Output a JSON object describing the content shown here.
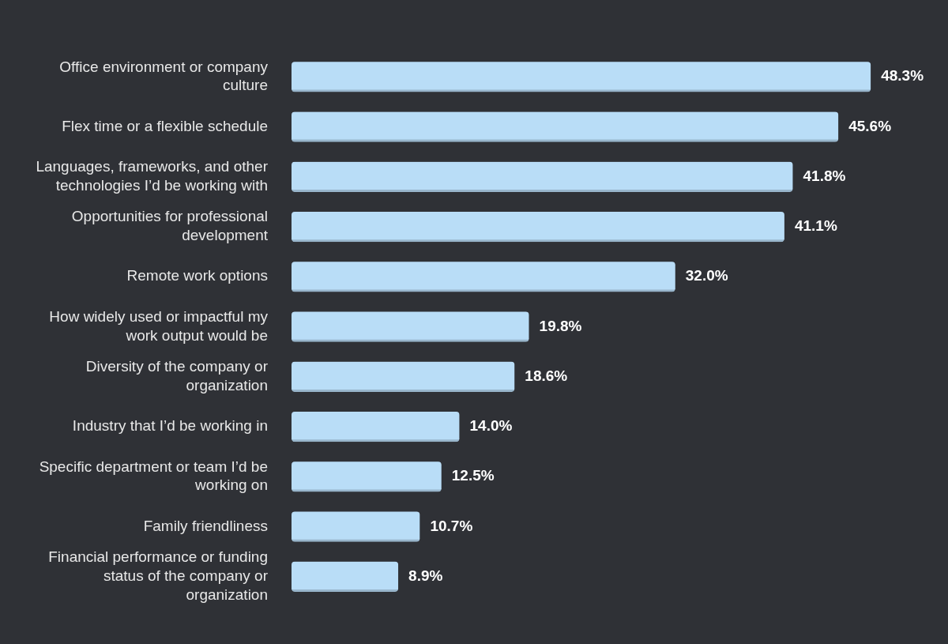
{
  "chart_data": {
    "type": "bar",
    "orientation": "horizontal",
    "categories": [
      "Office environment or company culture",
      "Flex time or a flexible schedule",
      "Languages, frameworks, and other technologies I’d be working with",
      "Opportunities for professional development",
      "Remote work options",
      "How widely used or impactful my work output would be",
      "Diversity of the company or organization",
      "Industry that I’d be working in",
      "Specific department or team I’d be working on",
      "Family friendliness",
      "Financial performance or funding status of the company or organization"
    ],
    "values": [
      48.3,
      45.6,
      41.8,
      41.1,
      32.0,
      19.8,
      18.6,
      14.0,
      12.5,
      10.7,
      8.9
    ],
    "value_labels": [
      "48.3%",
      "45.6%",
      "41.8%",
      "41.1%",
      "32.0%",
      "19.8%",
      "18.6%",
      "14.0%",
      "12.5%",
      "10.7%",
      "8.9%"
    ],
    "color": "#b9ddf7",
    "data_labels": true,
    "grid": false,
    "tick_labels": "y"
  }
}
